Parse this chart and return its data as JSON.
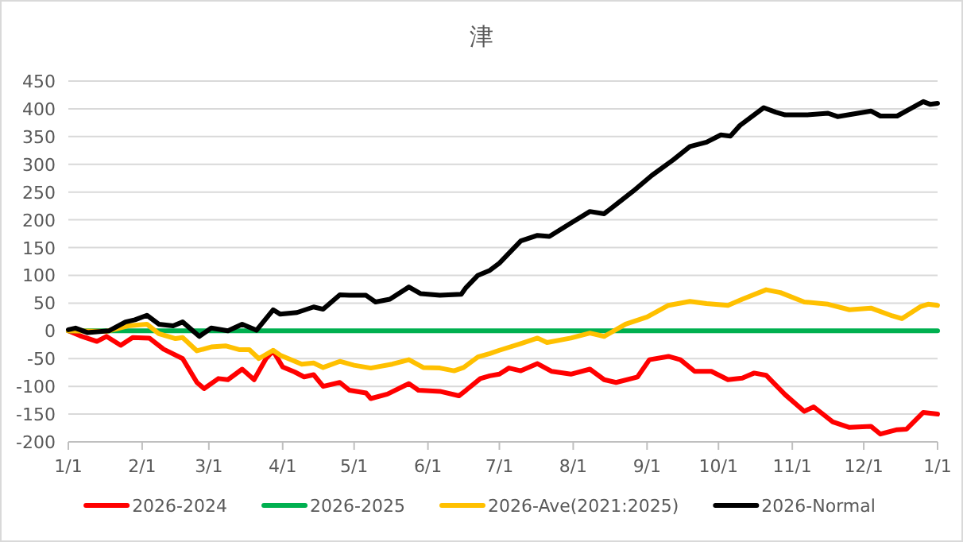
{
  "chart_data": {
    "type": "line",
    "title": "津",
    "xlim": [
      "2026-01-01",
      "2027-01-01"
    ],
    "ylim": [
      -200,
      450
    ],
    "xticks": [
      {
        "value": "2026-01-01",
        "label": "1/1"
      },
      {
        "value": "2026-02-01",
        "label": "2/1"
      },
      {
        "value": "2026-03-01",
        "label": "3/1"
      },
      {
        "value": "2026-04-01",
        "label": "4/1"
      },
      {
        "value": "2026-05-01",
        "label": "5/1"
      },
      {
        "value": "2026-06-01",
        "label": "6/1"
      },
      {
        "value": "2026-07-01",
        "label": "7/1"
      },
      {
        "value": "2026-08-01",
        "label": "8/1"
      },
      {
        "value": "2026-09-01",
        "label": "9/1"
      },
      {
        "value": "2026-10-01",
        "label": "10/1"
      },
      {
        "value": "2026-11-01",
        "label": "11/1"
      },
      {
        "value": "2026-12-01",
        "label": "12/1"
      },
      {
        "value": "2027-01-01",
        "label": "1/1"
      }
    ],
    "yticks": [
      -200,
      -150,
      -100,
      -50,
      0,
      50,
      100,
      150,
      200,
      250,
      300,
      350,
      400,
      450
    ],
    "grid": "y",
    "legend": "bottom",
    "line_style": "solid",
    "marker": "none",
    "series": [
      {
        "name": "2026-2024",
        "color": "#ff0000",
        "x": [
          "2026-01-01",
          "2026-01-06",
          "2026-01-13",
          "2026-01-17",
          "2026-01-23",
          "2026-01-28",
          "2026-02-04",
          "2026-02-10",
          "2026-02-18",
          "2026-02-24",
          "2026-02-27",
          "2026-03-05",
          "2026-03-09",
          "2026-03-15",
          "2026-03-20",
          "2026-03-25",
          "2026-03-28",
          "2026-04-01",
          "2026-04-06",
          "2026-04-10",
          "2026-04-14",
          "2026-04-18",
          "2026-04-25",
          "2026-04-29",
          "2026-05-06",
          "2026-05-08",
          "2026-05-15",
          "2026-05-24",
          "2026-05-28",
          "2026-06-06",
          "2026-06-14",
          "2026-06-17",
          "2026-06-23",
          "2026-06-27",
          "2026-07-01",
          "2026-07-05",
          "2026-07-10",
          "2026-07-17",
          "2026-07-23",
          "2026-07-31",
          "2026-08-08",
          "2026-08-14",
          "2026-08-19",
          "2026-08-28",
          "2026-09-02",
          "2026-09-10",
          "2026-09-15",
          "2026-09-21",
          "2026-09-28",
          "2026-10-05",
          "2026-10-11",
          "2026-10-16",
          "2026-10-21",
          "2026-10-29",
          "2026-11-06",
          "2026-11-10",
          "2026-11-18",
          "2026-11-25",
          "2026-12-04",
          "2026-12-08",
          "2026-12-15",
          "2026-12-19",
          "2026-12-26",
          "2027-01-01"
        ],
        "values": [
          0,
          -9,
          -19,
          -10,
          -26,
          -12,
          -13,
          -33,
          -50,
          -93,
          -104,
          -86,
          -88,
          -69,
          -88,
          -50,
          -36,
          -65,
          -74,
          -83,
          -79,
          -100,
          -93,
          -107,
          -112,
          -122,
          -114,
          -95,
          -107,
          -109,
          -117,
          -107,
          -86,
          -81,
          -78,
          -67,
          -72,
          -59,
          -73,
          -78,
          -69,
          -88,
          -93,
          -83,
          -52,
          -46,
          -52,
          -73,
          -73,
          -88,
          -85,
          -76,
          -80,
          -115,
          -145,
          -137,
          -164,
          -174,
          -172,
          -186,
          -178,
          -177,
          -147,
          -150
        ]
      },
      {
        "name": "2026-2025",
        "color": "#00b050",
        "x": [
          "2026-01-01",
          "2027-01-01"
        ],
        "values": [
          0,
          0
        ]
      },
      {
        "name": "2026-Ave(2021:2025)",
        "color": "#ffc000",
        "x": [
          "2026-01-01",
          "2026-01-17",
          "2026-01-26",
          "2026-02-03",
          "2026-02-08",
          "2026-02-15",
          "2026-02-18",
          "2026-02-24",
          "2026-03-02",
          "2026-03-08",
          "2026-03-14",
          "2026-03-18",
          "2026-03-22",
          "2026-03-28",
          "2026-03-31",
          "2026-04-09",
          "2026-04-14",
          "2026-04-18",
          "2026-04-25",
          "2026-05-01",
          "2026-05-08",
          "2026-05-17",
          "2026-05-24",
          "2026-05-30",
          "2026-06-06",
          "2026-06-12",
          "2026-06-16",
          "2026-06-22",
          "2026-06-27",
          "2026-07-01",
          "2026-07-10",
          "2026-07-17",
          "2026-07-21",
          "2026-07-31",
          "2026-08-08",
          "2026-08-14",
          "2026-08-23",
          "2026-09-01",
          "2026-09-10",
          "2026-09-19",
          "2026-09-26",
          "2026-10-05",
          "2026-10-11",
          "2026-10-21",
          "2026-10-27",
          "2026-11-06",
          "2026-11-16",
          "2026-11-25",
          "2026-12-04",
          "2026-12-13",
          "2026-12-17",
          "2026-12-25",
          "2026-12-28",
          "2027-01-01"
        ],
        "values": [
          0,
          -1,
          9,
          12,
          -5,
          -14,
          -12,
          -36,
          -29,
          -27,
          -34,
          -34,
          -50,
          -35,
          -44,
          -60,
          -58,
          -66,
          -55,
          -62,
          -67,
          -60,
          -52,
          -66,
          -67,
          -72,
          -66,
          -47,
          -41,
          -35,
          -23,
          -13,
          -21,
          -13,
          -4,
          -10,
          12,
          25,
          46,
          53,
          49,
          46,
          57,
          74,
          69,
          52,
          48,
          38,
          41,
          27,
          22,
          44,
          48,
          46
        ]
      },
      {
        "name": "2026-Normal",
        "color": "#000000",
        "x": [
          "2026-01-01",
          "2026-01-04",
          "2026-01-09",
          "2026-01-18",
          "2026-01-25",
          "2026-01-29",
          "2026-02-03",
          "2026-02-08",
          "2026-02-14",
          "2026-02-18",
          "2026-02-25",
          "2026-03-02",
          "2026-03-09",
          "2026-03-15",
          "2026-03-21",
          "2026-03-28",
          "2026-03-31",
          "2026-04-07",
          "2026-04-14",
          "2026-04-18",
          "2026-04-25",
          "2026-04-29",
          "2026-05-06",
          "2026-05-10",
          "2026-05-16",
          "2026-05-24",
          "2026-05-29",
          "2026-06-06",
          "2026-06-15",
          "2026-06-17",
          "2026-06-22",
          "2026-06-27",
          "2026-07-01",
          "2026-07-10",
          "2026-07-17",
          "2026-07-22",
          "2026-07-31",
          "2026-08-08",
          "2026-08-14",
          "2026-08-26",
          "2026-09-03",
          "2026-09-12",
          "2026-09-19",
          "2026-09-26",
          "2026-10-02",
          "2026-10-06",
          "2026-10-10",
          "2026-10-20",
          "2026-10-25",
          "2026-10-29",
          "2026-11-07",
          "2026-11-16",
          "2026-11-20",
          "2026-12-04",
          "2026-12-08",
          "2026-12-15",
          "2026-12-21",
          "2026-12-26",
          "2026-12-29",
          "2027-01-01"
        ],
        "values": [
          2,
          5,
          -3,
          0,
          16,
          20,
          28,
          12,
          9,
          16,
          -10,
          5,
          0,
          12,
          1,
          38,
          30,
          33,
          43,
          39,
          65,
          64,
          64,
          52,
          57,
          79,
          67,
          64,
          66,
          78,
          100,
          109,
          122,
          162,
          172,
          170,
          194,
          215,
          211,
          251,
          280,
          308,
          332,
          340,
          353,
          351,
          370,
          402,
          394,
          389,
          389,
          392,
          386,
          396,
          387,
          387,
          401,
          413,
          408,
          410
        ]
      }
    ]
  }
}
